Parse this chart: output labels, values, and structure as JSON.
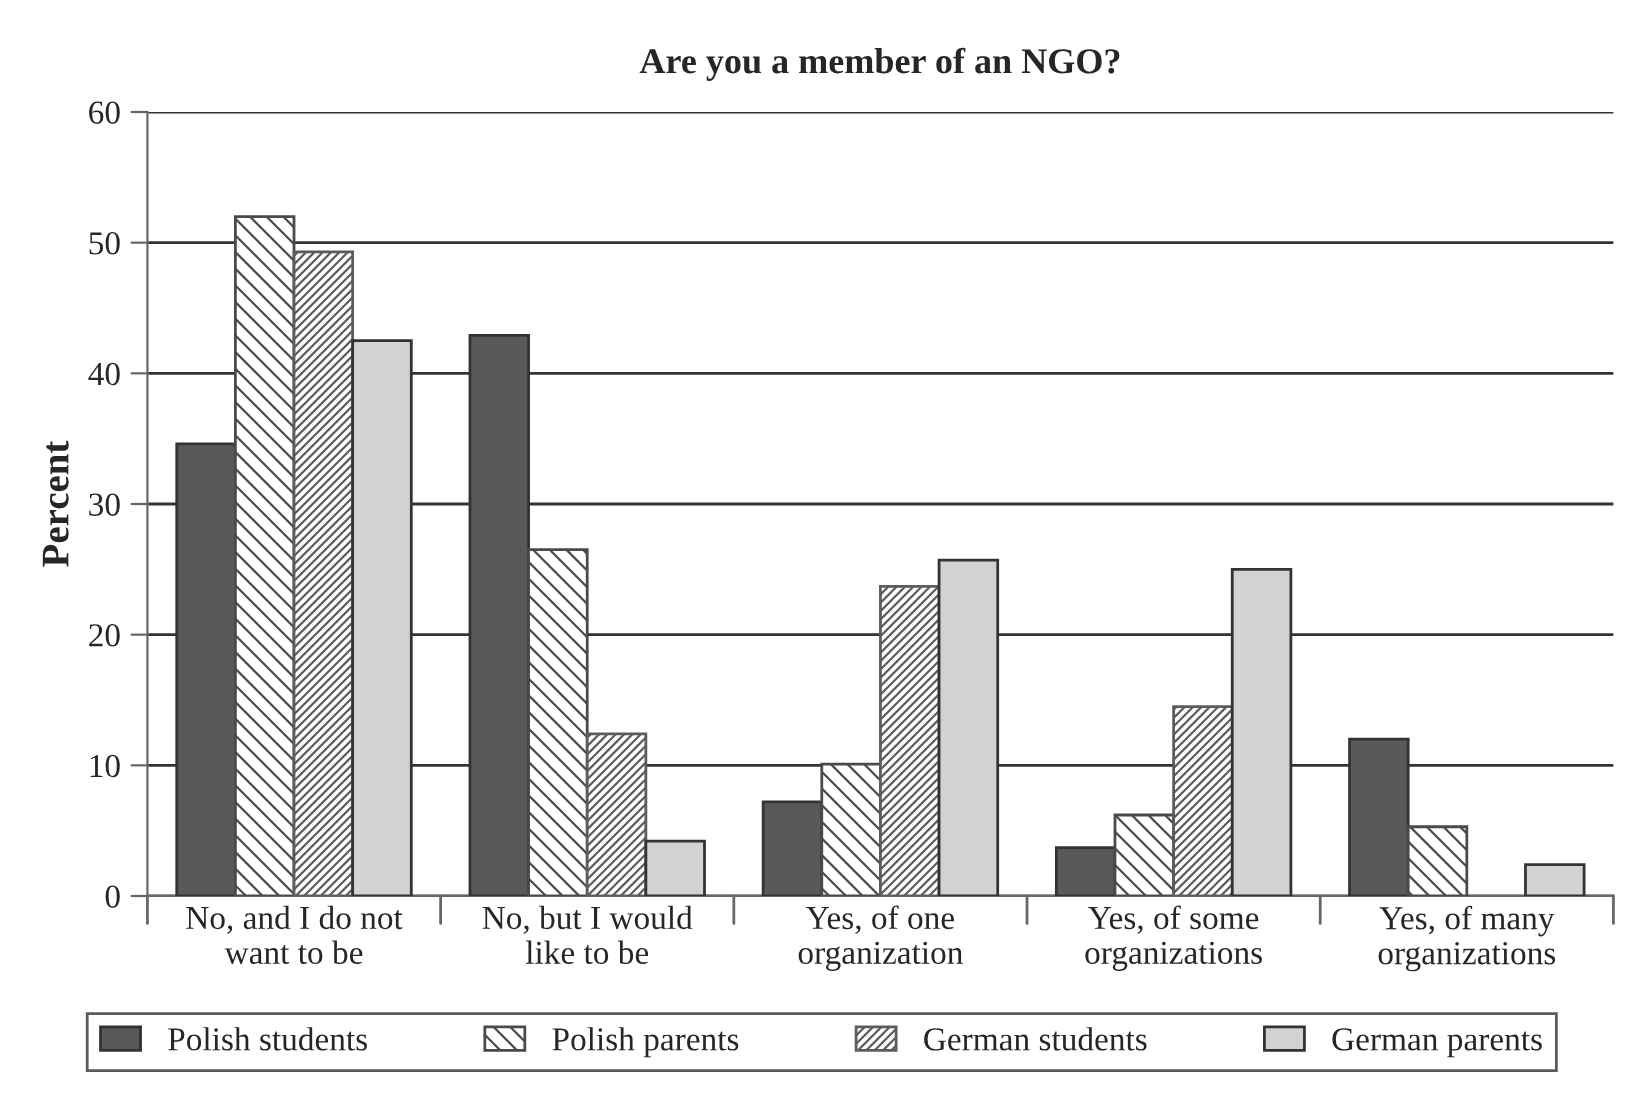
{
  "chart_data": {
    "type": "bar",
    "title": "Are you a member of an NGO?",
    "ylabel": "Percent",
    "categories": [
      "No, and I do not\nwant to be",
      "No, but I would\nlike to be",
      "Yes, of one\norganization",
      "Yes, of some\norganizations",
      "Yes, of many\norganizations"
    ],
    "series": [
      {
        "name": "Polish students",
        "color": "#58595b",
        "values": [
          34.6,
          42.9,
          7.2,
          3.7,
          12.0
        ]
      },
      {
        "name": "Polish parents",
        "color": "#4a4a4a",
        "values": [
          52.0,
          26.5,
          10.1,
          6.2,
          5.3
        ]
      },
      {
        "name": "German students",
        "color": "#5c5c5c",
        "values": [
          49.3,
          12.4,
          23.7,
          14.5,
          null
        ]
      },
      {
        "name": "German parents",
        "color": "#d1d2d4",
        "values": [
          42.5,
          4.2,
          25.7,
          25.0,
          2.4
        ]
      }
    ],
    "ylim": [
      0,
      60
    ],
    "yticks": [
      0,
      10,
      20,
      30,
      40,
      50,
      60
    ],
    "grid": "y",
    "legend": "bottom"
  }
}
